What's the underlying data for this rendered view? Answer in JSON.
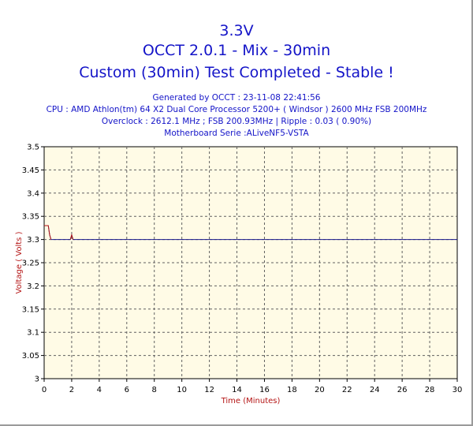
{
  "header": {
    "title": "3.3V",
    "app": "OCCT 2.0.1 - Mix - 30min",
    "status": "Custom (30min) Test Completed - Stable !",
    "generated": "Generated by OCCT : 23-11-08 22:41:56",
    "cpu": "CPU : AMD Athlon(tm) 64 X2 Dual Core Processor 5200+ ( Windsor ) 2600 MHz FSB 200MHz",
    "overclock": "Overclock : 2612.1 MHz ; FSB 200.93MHz | Ripple : 0.03 ( 0.90%)",
    "motherboard": "Motherboard Serie :ALiveNF5-VSTA"
  },
  "chart_data": {
    "type": "line",
    "xlabel": "Time (Minutes)",
    "ylabel": "Voltage ( Volts )",
    "xlim": [
      0,
      30
    ],
    "ylim": [
      3.0,
      3.5
    ],
    "xticks": [
      0,
      2,
      4,
      6,
      8,
      10,
      12,
      14,
      16,
      18,
      20,
      22,
      24,
      26,
      28,
      30
    ],
    "yticks": [
      3,
      3.05,
      3.1,
      3.15,
      3.2,
      3.25,
      3.3,
      3.35,
      3.4,
      3.45,
      3.5
    ],
    "grid": true,
    "colors": {
      "background": "#fffbe6",
      "grid": "#606060",
      "line": "#1a1a8c",
      "spike": "#b41414",
      "title": "#1414c8",
      "axis_title": "#b41414"
    },
    "series": [
      {
        "x": [
          0,
          0.3,
          0.4,
          0.5,
          1.9,
          2.0,
          2.1,
          30
        ],
        "y": [
          3.33,
          3.33,
          3.31,
          3.3,
          3.3,
          3.31,
          3.3,
          3.3
        ]
      }
    ]
  }
}
